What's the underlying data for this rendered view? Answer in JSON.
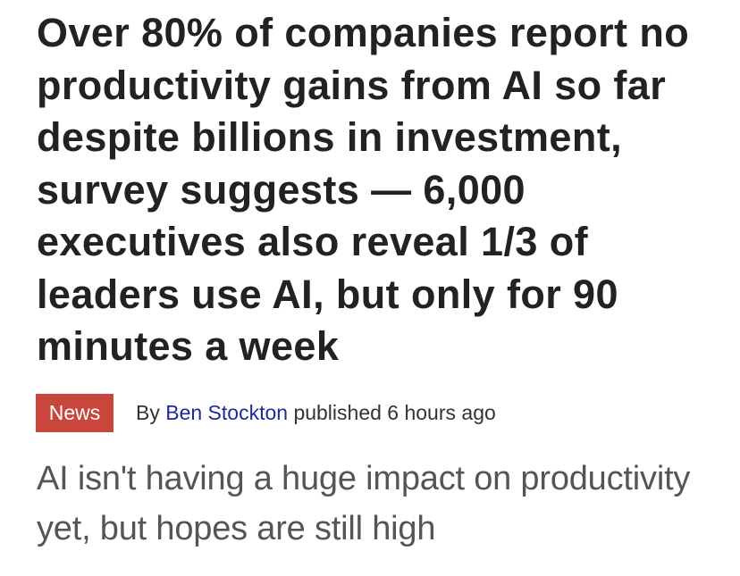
{
  "article": {
    "title": "Over 80% of companies report no productivity gains from AI so far despite billions in investment, survey suggests — 6,000 executives also reveal 1/3 of leaders use AI, but only for 90 minutes a week",
    "category": "News",
    "byline_prefix": "By",
    "author": "Ben Stockton",
    "published_label": "published",
    "published_time": "6 hours ago",
    "subtitle": "AI isn't having a huge impact on productivity yet, but hopes are still high"
  },
  "colors": {
    "badge": "#c9463d",
    "author_link": "#1a2aa0"
  }
}
